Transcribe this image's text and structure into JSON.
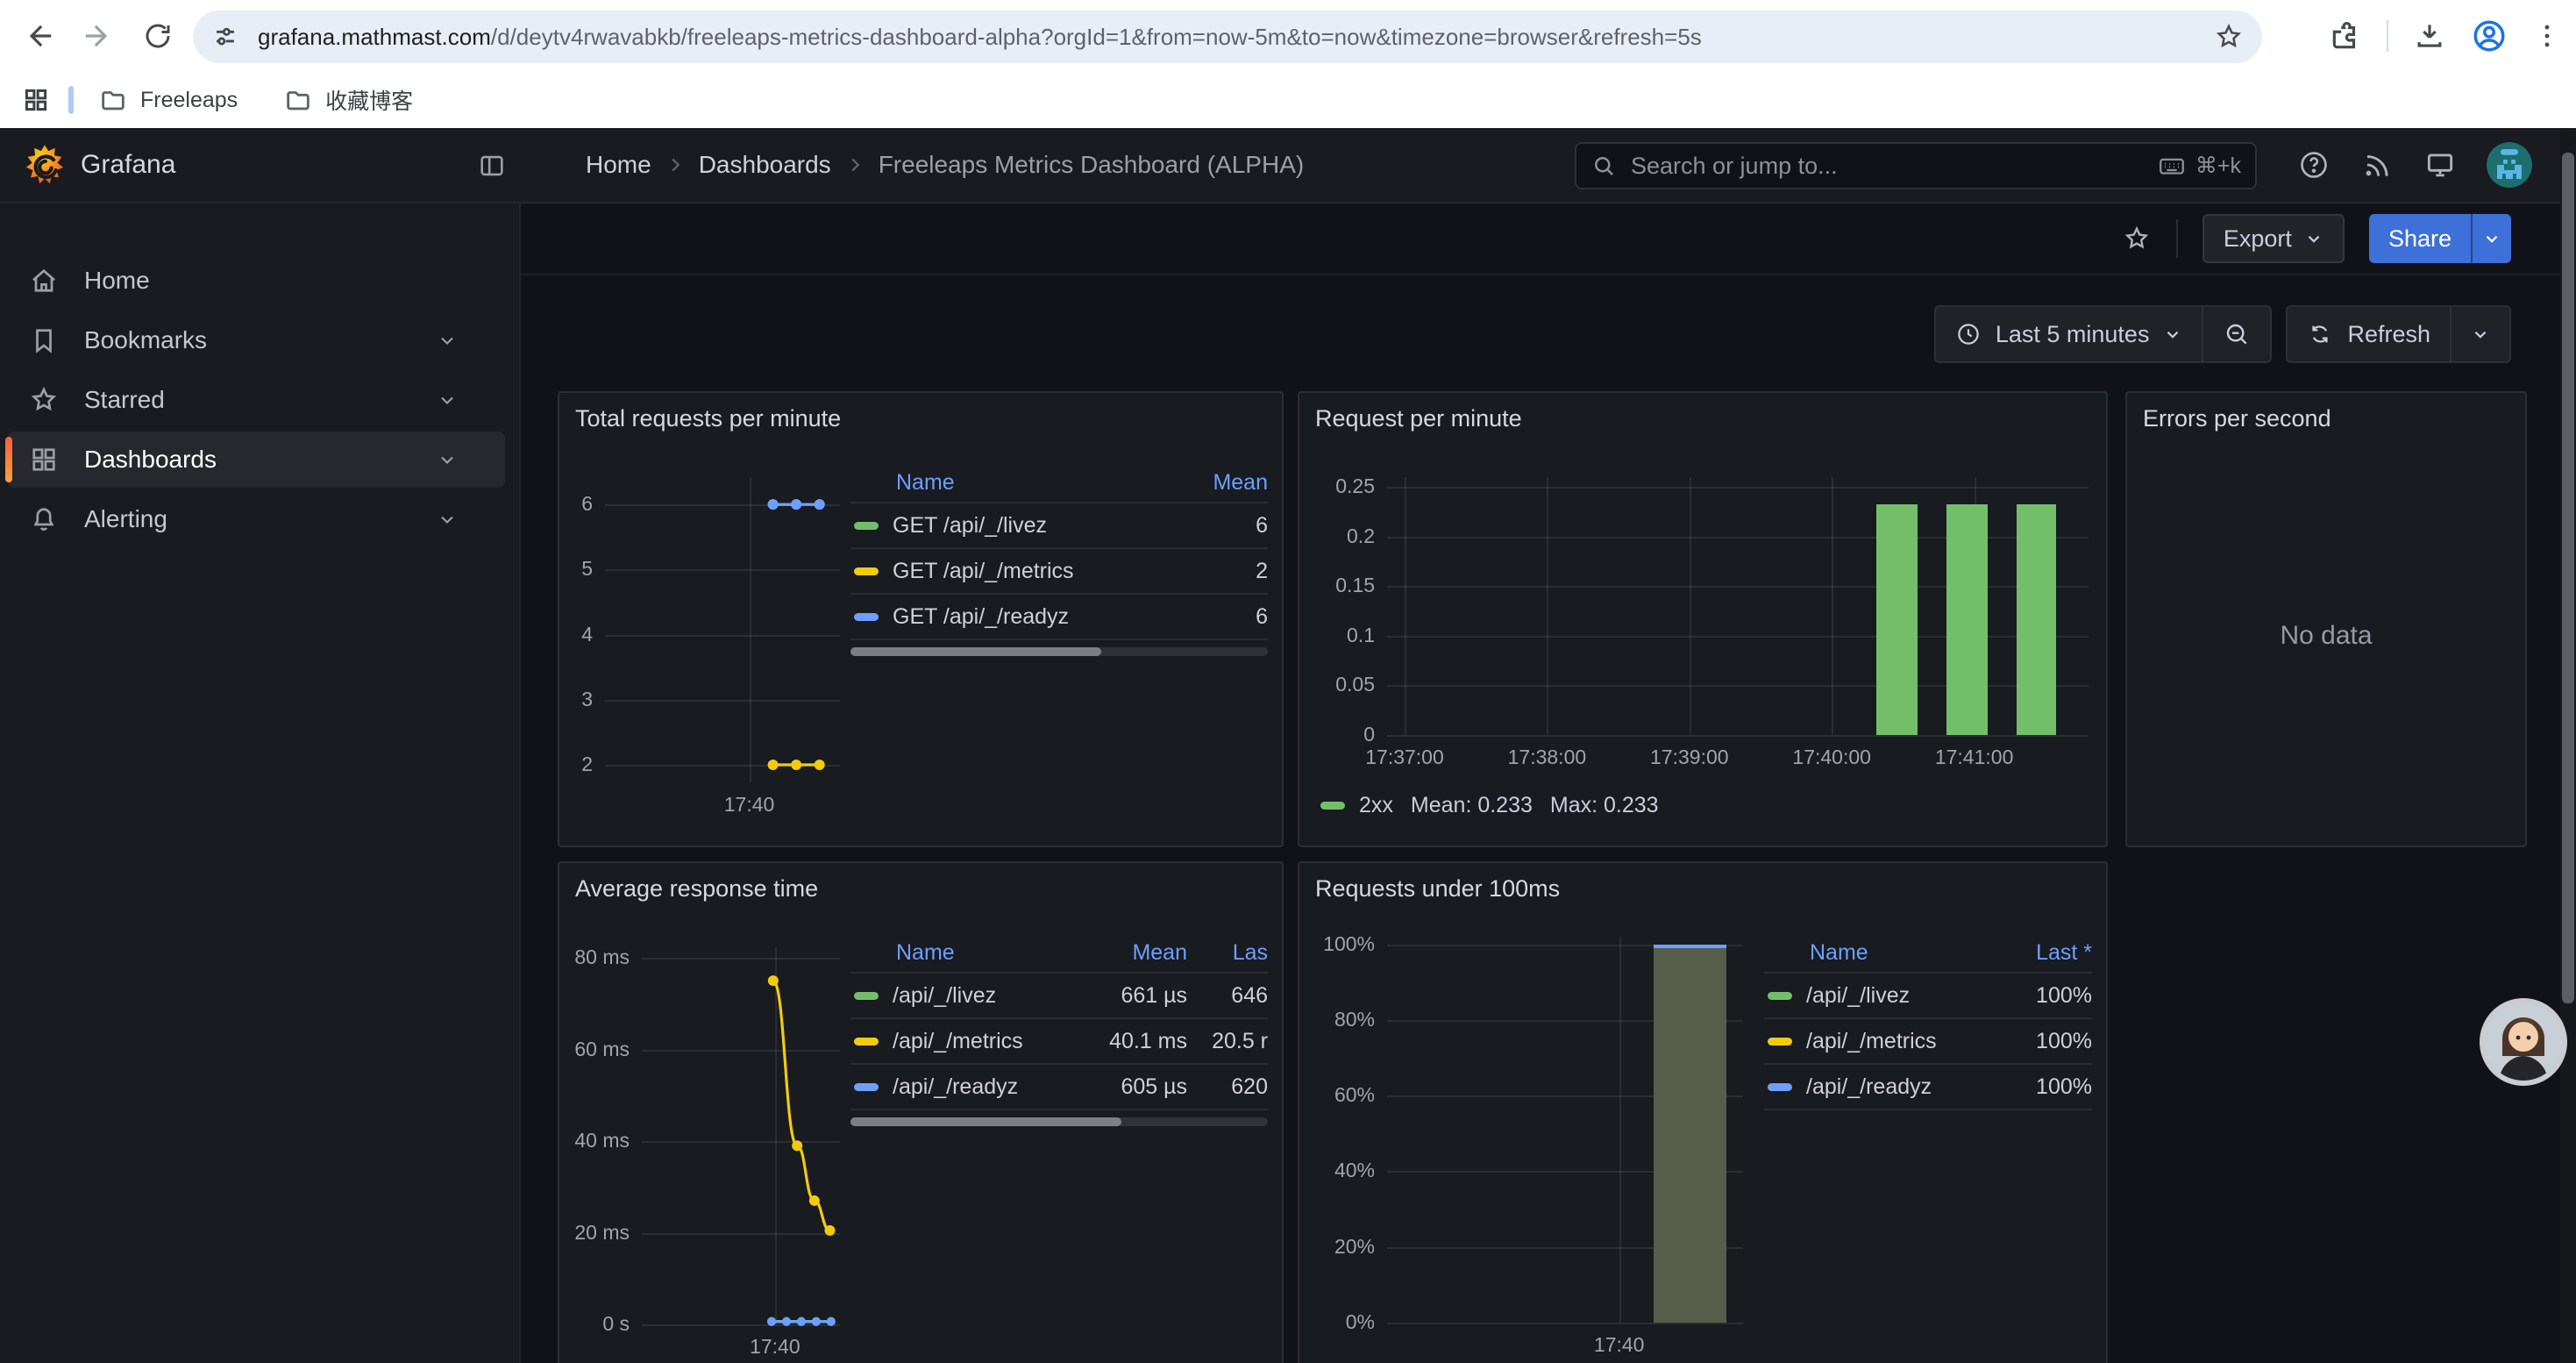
{
  "colors": {
    "accent_blue": "#3d71d9",
    "link_blue": "#6e9fff",
    "series_green": "#73bf69",
    "series_yellow": "#f2cc0c",
    "series_blue": "#6e9fff",
    "active_orange": "#f55f3e"
  },
  "browser": {
    "url_domain": "grafana.mathmast.com",
    "url_path": "/d/deytv4rwavabkb/freeleaps-metrics-dashboard-alpha?orgId=1&from=now-5m&to=now&timezone=browser&refresh=5s",
    "bookmarks": [
      {
        "label": "Freeleaps"
      },
      {
        "label": "收藏博客"
      }
    ]
  },
  "nav": {
    "brand": "Grafana",
    "breadcrumb": [
      "Home",
      "Dashboards",
      "Freeleaps Metrics Dashboard (ALPHA)"
    ],
    "search_placeholder": "Search or jump to...",
    "search_shortcut": "⌘+k"
  },
  "sidebar": {
    "items": [
      {
        "label": "Home"
      },
      {
        "label": "Bookmarks"
      },
      {
        "label": "Starred"
      },
      {
        "label": "Dashboards",
        "active": true
      },
      {
        "label": "Alerting"
      }
    ]
  },
  "toolbar": {
    "export_label": "Export",
    "share_label": "Share"
  },
  "controls": {
    "time_range": "Last 5 minutes",
    "refresh_label": "Refresh"
  },
  "panels": {
    "total_requests": {
      "title": "Total requests per minute",
      "legend": {
        "columns": [
          "Name",
          "Mean"
        ],
        "col_widths": [
          0,
          50
        ],
        "scrollbar": 0.6,
        "rows": [
          {
            "color": "#73bf69",
            "name": "GET /api/_/livez",
            "values": [
              "6"
            ]
          },
          {
            "color": "#f2cc0c",
            "name": "GET /api/_/metrics",
            "values": [
              "2"
            ]
          },
          {
            "color": "#6e9fff",
            "name": "GET /api/_/readyz",
            "values": [
              "6"
            ]
          }
        ]
      }
    },
    "request_per_minute": {
      "title": "Request per minute",
      "legend_inline": {
        "color": "#73bf69",
        "name": "2xx",
        "mean": "Mean: 0.233",
        "max": "Max: 0.233"
      }
    },
    "errors": {
      "title": "Errors per second",
      "no_data": "No data"
    },
    "avg_response": {
      "title": "Average response time",
      "legend": {
        "columns": [
          "Name",
          "Mean",
          "Las"
        ],
        "col_widths": [
          0,
          58,
          46
        ],
        "scrollbar": 0.65,
        "rows": [
          {
            "color": "#73bf69",
            "name": "/api/_/livez",
            "values": [
              "661 µs",
              "646"
            ]
          },
          {
            "color": "#f2cc0c",
            "name": "/api/_/metrics",
            "values": [
              "40.1 ms",
              "20.5 r"
            ]
          },
          {
            "color": "#6e9fff",
            "name": "/api/_/readyz",
            "values": [
              "605 µs",
              "620"
            ]
          }
        ]
      }
    },
    "under_100ms": {
      "title": "Requests under 100ms",
      "legend": {
        "columns": [
          "Name",
          "Last *"
        ],
        "col_widths": [
          0,
          52
        ],
        "rows": [
          {
            "color": "#73bf69",
            "name": "/api/_/livez",
            "values": [
              "100%"
            ]
          },
          {
            "color": "#f2cc0c",
            "name": "/api/_/metrics",
            "values": [
              "100%"
            ]
          },
          {
            "color": "#6e9fff",
            "name": "/api/_/readyz",
            "values": [
              "100%"
            ]
          }
        ]
      }
    }
  },
  "chart_data": [
    {
      "id": "total_requests",
      "type": "line",
      "title": "Total requests per minute",
      "ylim": [
        1.73,
        6.42
      ],
      "yticks": [
        {
          "label": "6",
          "v": 6
        },
        {
          "label": "5",
          "v": 5
        },
        {
          "label": "4",
          "v": 4
        },
        {
          "label": "3",
          "v": 3
        },
        {
          "label": "2",
          "v": 2
        }
      ],
      "xticks": [
        {
          "label": "17:40",
          "f": 0.614
        }
      ],
      "vgrid": [
        0.614
      ],
      "series": [
        {
          "name": "GET /api/_/livez",
          "color": "#73bf69",
          "points": [
            {
              "f": 0.715,
              "v": 6
            },
            {
              "f": 0.814,
              "v": 6
            },
            {
              "f": 0.913,
              "v": 6
            }
          ]
        },
        {
          "name": "GET /api/_/readyz",
          "color": "#6e9fff",
          "points": [
            {
              "f": 0.715,
              "v": 6
            },
            {
              "f": 0.814,
              "v": 6
            },
            {
              "f": 0.913,
              "v": 6
            }
          ]
        },
        {
          "name": "GET /api/_/metrics",
          "color": "#f2cc0c",
          "points": [
            {
              "f": 0.715,
              "v": 2
            },
            {
              "f": 0.814,
              "v": 2
            },
            {
              "f": 0.913,
              "v": 2
            }
          ]
        }
      ]
    },
    {
      "id": "request_per_minute",
      "type": "bar",
      "title": "Request per minute",
      "ylim": [
        0,
        0.26
      ],
      "bar_color": "#73bf69",
      "yticks": [
        {
          "label": "0.25",
          "v": 0.25
        },
        {
          "label": "0.2",
          "v": 0.2
        },
        {
          "label": "0.15",
          "v": 0.15
        },
        {
          "label": "0.1",
          "v": 0.1
        },
        {
          "label": "0.05",
          "v": 0.05
        },
        {
          "label": "0",
          "v": 0
        }
      ],
      "xticks": [
        {
          "label": "17:37:00",
          "f": 0.025
        },
        {
          "label": "17:38:00",
          "f": 0.228
        },
        {
          "label": "17:39:00",
          "f": 0.431
        },
        {
          "label": "17:40:00",
          "f": 0.634
        },
        {
          "label": "17:41:00",
          "f": 0.837
        }
      ],
      "vgrid": [
        0.025,
        0.228,
        0.431,
        0.634,
        0.837
      ],
      "bars": [
        {
          "f0": 0.698,
          "f1": 0.756,
          "v": 0.233
        },
        {
          "f0": 0.798,
          "f1": 0.856,
          "v": 0.233
        },
        {
          "f0": 0.898,
          "f1": 0.954,
          "v": 0.233
        }
      ],
      "legend": {
        "name": "2xx",
        "mean": 0.233,
        "max": 0.233
      }
    },
    {
      "id": "errors",
      "type": "none",
      "title": "Errors per second",
      "no_data": "No data"
    },
    {
      "id": "avg_response",
      "type": "line",
      "title": "Average response time",
      "ylim": [
        0,
        82.3
      ],
      "yticks": [
        {
          "label": "80 ms",
          "v": 80
        },
        {
          "label": "60 ms",
          "v": 60
        },
        {
          "label": "40 ms",
          "v": 40
        },
        {
          "label": "20 ms",
          "v": 20
        },
        {
          "label": "0 s",
          "v": 0
        }
      ],
      "xticks": [
        {
          "label": "17:40",
          "f": 0.672
        }
      ],
      "vgrid": [
        0.672
      ],
      "series": [
        {
          "name": "/api/_/livez",
          "color": "#73bf69",
          "dot": 2.5,
          "points": [
            {
              "f": 0.655,
              "v": 0.66
            },
            {
              "f": 0.73,
              "v": 0.66
            },
            {
              "f": 0.805,
              "v": 0.66
            },
            {
              "f": 0.88,
              "v": 0.66
            },
            {
              "f": 0.955,
              "v": 0.66
            }
          ]
        },
        {
          "name": "/api/_/readyz",
          "color": "#6e9fff",
          "dot": 2.5,
          "points": [
            {
              "f": 0.655,
              "v": 0.6
            },
            {
              "f": 0.73,
              "v": 0.6
            },
            {
              "f": 0.805,
              "v": 0.6
            },
            {
              "f": 0.88,
              "v": 0.6
            },
            {
              "f": 0.955,
              "v": 0.6
            }
          ]
        },
        {
          "name": "/api/_/metrics",
          "color": "#f2cc0c",
          "curve": true,
          "points": [
            {
              "f": 0.663,
              "v": 75
            },
            {
              "f": 0.784,
              "v": 39
            },
            {
              "f": 0.871,
              "v": 27
            },
            {
              "f": 0.949,
              "v": 20.5
            }
          ]
        }
      ]
    },
    {
      "id": "under_100ms",
      "type": "bar",
      "title": "Requests under 100ms",
      "ylim": [
        0,
        102
      ],
      "yticks": [
        {
          "label": "100%",
          "v": 100
        },
        {
          "label": "80%",
          "v": 80
        },
        {
          "label": "60%",
          "v": 60
        },
        {
          "label": "40%",
          "v": 40
        },
        {
          "label": "20%",
          "v": 20
        },
        {
          "label": "0%",
          "v": 0
        }
      ],
      "xticks": [
        {
          "label": "17:40",
          "f": 0.652
        }
      ],
      "vgrid": [
        0.652
      ],
      "bars": [
        {
          "f0": 0.749,
          "f1": 0.952,
          "v": 100,
          "color": "#565e49",
          "top": "#6e9fff"
        }
      ]
    }
  ]
}
